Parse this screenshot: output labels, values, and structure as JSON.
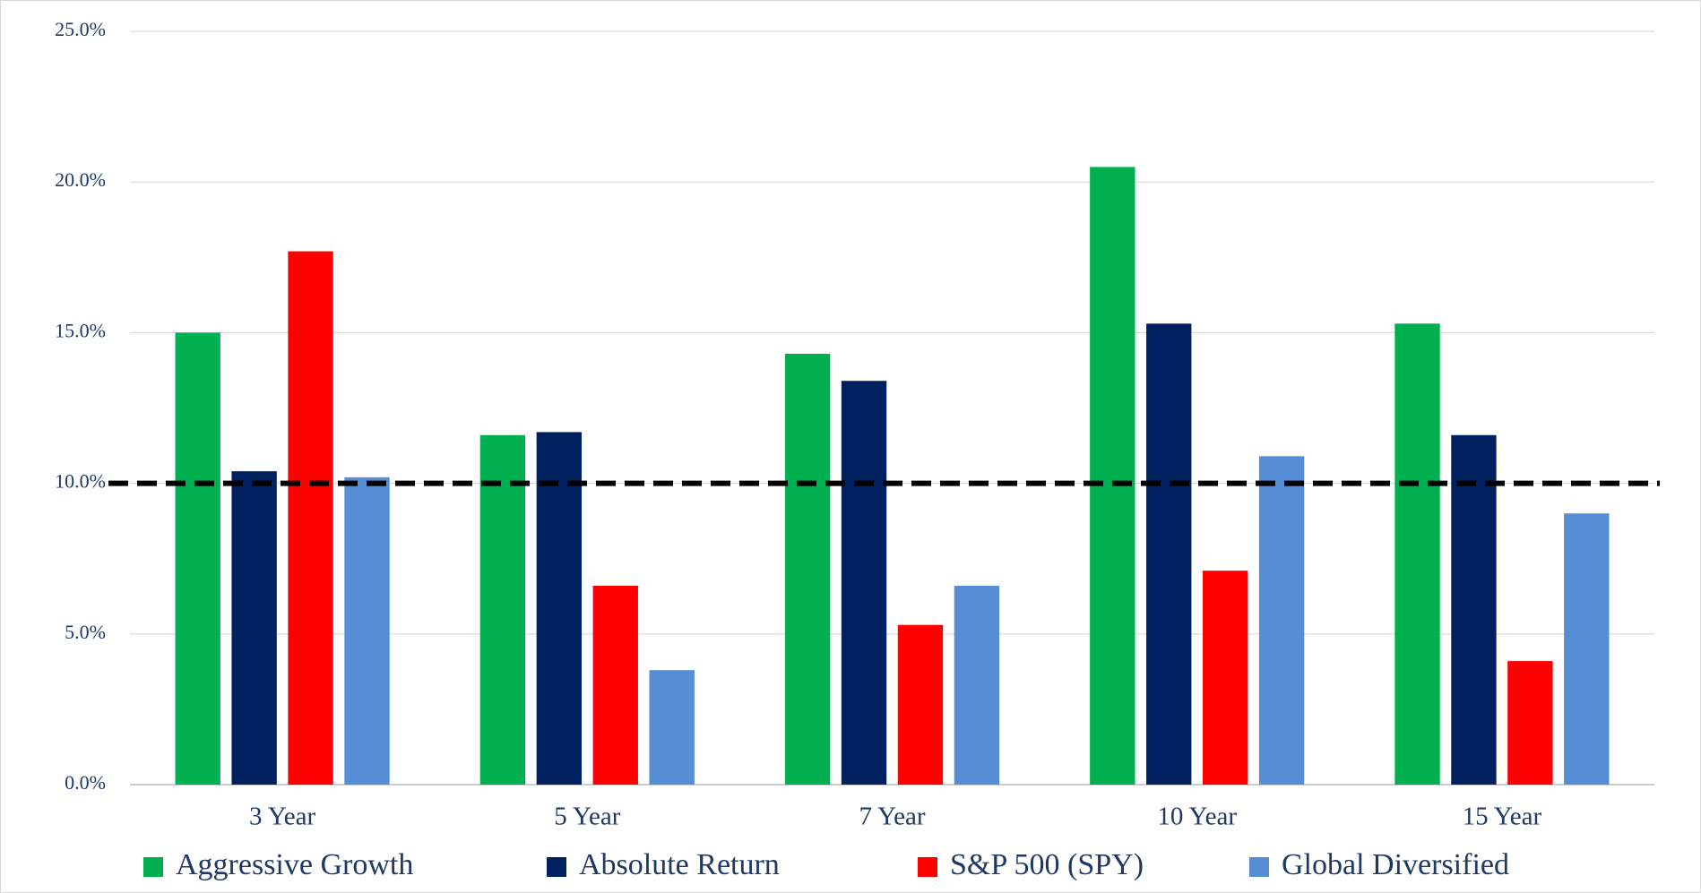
{
  "chart_data": {
    "type": "bar",
    "categories": [
      "3 Year",
      "5 Year",
      "7 Year",
      "10 Year",
      "15 Year"
    ],
    "series": [
      {
        "name": "Aggressive Growth",
        "color": "#00b050",
        "values": [
          15.0,
          11.6,
          14.3,
          20.5,
          15.3
        ]
      },
      {
        "name": "Absolute Return",
        "color": "#002060",
        "values": [
          10.4,
          11.7,
          13.4,
          15.3,
          11.6
        ]
      },
      {
        "name": "S&P 500 (SPY)",
        "color": "#ff0000",
        "values": [
          17.7,
          6.6,
          5.3,
          7.1,
          4.1
        ]
      },
      {
        "name": "Global Diversified",
        "color": "#558ed5",
        "values": [
          10.2,
          3.8,
          6.6,
          10.9,
          9.0
        ]
      }
    ],
    "reference_line": {
      "value": 10,
      "color": "#000000",
      "style": "dashed"
    },
    "ylim": [
      0,
      25
    ],
    "yticks": [
      {
        "value": 0,
        "label": "0.0%"
      },
      {
        "value": 5,
        "label": "5.0%"
      },
      {
        "value": 10,
        "label": "10.0%"
      },
      {
        "value": 15,
        "label": "15.0%"
      },
      {
        "value": 20,
        "label": "20.0%"
      },
      {
        "value": 25,
        "label": "25.0%"
      }
    ],
    "grid": true,
    "legend": "bottom"
  }
}
